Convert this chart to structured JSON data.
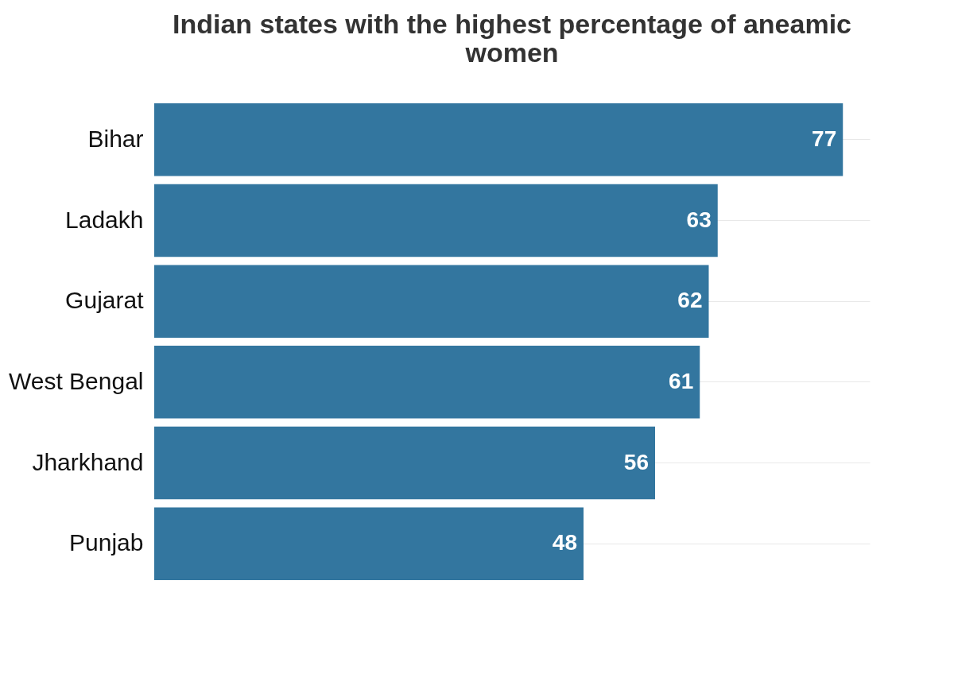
{
  "chart_data": {
    "type": "bar",
    "orientation": "horizontal",
    "title": "Indian states with the highest percentage of aneamic women",
    "categories": [
      "Bihar",
      "Ladakh",
      "Gujarat",
      "West Bengal",
      "Jharkhand",
      "Punjab"
    ],
    "values": [
      77,
      63,
      62,
      61,
      56,
      48
    ],
    "color": "#33769f",
    "xlim": [
      0,
      80
    ],
    "data_labels": true,
    "grid": "y",
    "tick_labels": "y"
  }
}
